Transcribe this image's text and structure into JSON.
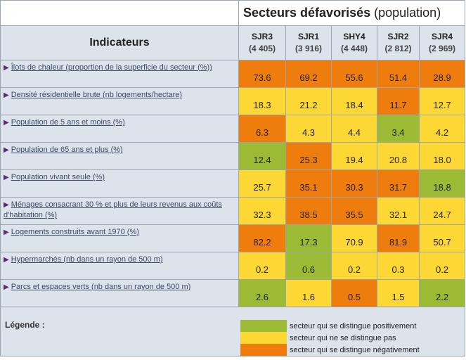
{
  "title": {
    "bold": "Secteurs défavorisés",
    "suffix": "(population)"
  },
  "header": {
    "indicators": "Indicateurs"
  },
  "sectors": [
    {
      "code": "SJR3",
      "pop": "(4 405)"
    },
    {
      "code": "SJR1",
      "pop": "(3 916)"
    },
    {
      "code": "SHY4",
      "pop": "(4 448)"
    },
    {
      "code": "SJR2",
      "pop": "(2 812)"
    },
    {
      "code": "SJR4",
      "pop": "(2 969)"
    }
  ],
  "colors": {
    "positive": "#9bbb34",
    "neutral": "#fdd835",
    "negative": "#ef7d0d"
  },
  "rows": [
    {
      "label": "Îlots de chaleur (proportion de la superficie du secteur (%))",
      "cells": [
        {
          "v": "73.6",
          "c": "neg"
        },
        {
          "v": "69.2",
          "c": "neg"
        },
        {
          "v": "55.6",
          "c": "neg"
        },
        {
          "v": "51.4",
          "c": "neg"
        },
        {
          "v": "28.9",
          "c": "neg"
        }
      ]
    },
    {
      "label": "Densité résidentielle brute (nb logements/hectare)",
      "cells": [
        {
          "v": "18.3",
          "c": "neu"
        },
        {
          "v": "21.2",
          "c": "neu"
        },
        {
          "v": "18.4",
          "c": "neu"
        },
        {
          "v": "11.7",
          "c": "neg"
        },
        {
          "v": "12.7",
          "c": "neu"
        }
      ]
    },
    {
      "label": "Population de 5 ans et moins (%)",
      "cells": [
        {
          "v": "6.3",
          "c": "neg"
        },
        {
          "v": "4.3",
          "c": "neu"
        },
        {
          "v": "4.4",
          "c": "neu"
        },
        {
          "v": "3.4",
          "c": "pos"
        },
        {
          "v": "4.2",
          "c": "neu"
        }
      ]
    },
    {
      "label": "Population de 65 ans et plus (%)",
      "cells": [
        {
          "v": "12.4",
          "c": "pos"
        },
        {
          "v": "25.3",
          "c": "neg"
        },
        {
          "v": "19.4",
          "c": "neu"
        },
        {
          "v": "20.8",
          "c": "neu"
        },
        {
          "v": "18.0",
          "c": "neu"
        }
      ]
    },
    {
      "label": "Population vivant seule (%)",
      "cells": [
        {
          "v": "25.7",
          "c": "neu"
        },
        {
          "v": "35.1",
          "c": "neg"
        },
        {
          "v": "30.3",
          "c": "neg"
        },
        {
          "v": "31.7",
          "c": "neg"
        },
        {
          "v": "18.8",
          "c": "pos"
        }
      ]
    },
    {
      "label": "Ménages consacrant 30 % et plus de leurs revenus aux coûts d'habitation (%)",
      "cells": [
        {
          "v": "32.3",
          "c": "neu"
        },
        {
          "v": "38.5",
          "c": "neg"
        },
        {
          "v": "35.5",
          "c": "neg"
        },
        {
          "v": "32.1",
          "c": "neu"
        },
        {
          "v": "24.7",
          "c": "neu"
        }
      ]
    },
    {
      "label": "Logements construits avant 1970 (%)",
      "cells": [
        {
          "v": "82.2",
          "c": "neg"
        },
        {
          "v": "17.3",
          "c": "pos"
        },
        {
          "v": "70.9",
          "c": "neu"
        },
        {
          "v": "81.9",
          "c": "neg"
        },
        {
          "v": "50.7",
          "c": "neu"
        }
      ]
    },
    {
      "label": "Hypermarchés (nb dans un rayon de 500 m)",
      "cells": [
        {
          "v": "0.2",
          "c": "neu"
        },
        {
          "v": "0.6",
          "c": "pos"
        },
        {
          "v": "0.2",
          "c": "neu"
        },
        {
          "v": "0.3",
          "c": "neu"
        },
        {
          "v": "0.2",
          "c": "neu"
        }
      ]
    },
    {
      "label": "Parcs et espaces verts (nb dans un rayon de 500 m)",
      "cells": [
        {
          "v": "2.6",
          "c": "pos"
        },
        {
          "v": "1.6",
          "c": "neu"
        },
        {
          "v": "0.5",
          "c": "neg"
        },
        {
          "v": "1.5",
          "c": "neu"
        },
        {
          "v": "2.2",
          "c": "pos"
        }
      ]
    }
  ],
  "legend": {
    "title": "Légende :",
    "items": [
      {
        "c": "pos",
        "text": "secteur qui se distingue positivement"
      },
      {
        "c": "neu",
        "text": "secteur qui ne se distingue pas"
      },
      {
        "c": "neg",
        "text": "secteur qui se distingue négativement"
      }
    ]
  }
}
